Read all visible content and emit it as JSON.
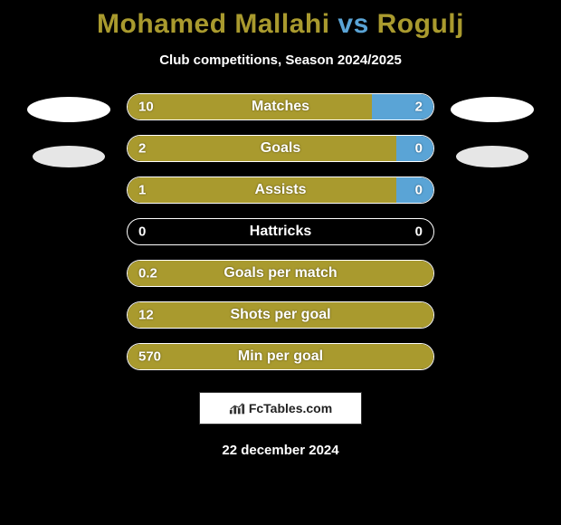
{
  "title": {
    "player1": "Mohamed Mallahi",
    "vs": "vs",
    "player2": "Rogulj",
    "color1": "#a99a2e",
    "color_vs": "#5aa4d6",
    "color2": "#a99a2e"
  },
  "subtitle": "Club competitions, Season 2024/2025",
  "bar_colors": {
    "left": "#a99a2e",
    "right": "#5aa4d6",
    "neutral": "#000000",
    "full_left": "#a99a2e"
  },
  "rows": [
    {
      "label": "Matches",
      "left_value": "10",
      "right_value": "2",
      "left_pct": 80,
      "right_pct": 20,
      "show_right_fill": true
    },
    {
      "label": "Goals",
      "left_value": "2",
      "right_value": "0",
      "left_pct": 88,
      "right_pct": 12,
      "show_right_fill": true
    },
    {
      "label": "Assists",
      "left_value": "1",
      "right_value": "0",
      "left_pct": 88,
      "right_pct": 12,
      "show_right_fill": true
    },
    {
      "label": "Hattricks",
      "left_value": "0",
      "right_value": "0",
      "left_pct": 0,
      "right_pct": 0,
      "show_right_fill": false
    },
    {
      "label": "Goals per match",
      "left_value": "0.2",
      "right_value": "",
      "left_pct": 100,
      "right_pct": 0,
      "show_right_fill": false
    },
    {
      "label": "Shots per goal",
      "left_value": "12",
      "right_value": "",
      "left_pct": 100,
      "right_pct": 0,
      "show_right_fill": false
    },
    {
      "label": "Min per goal",
      "left_value": "570",
      "right_value": "",
      "left_pct": 100,
      "right_pct": 0,
      "show_right_fill": false
    }
  ],
  "footer": {
    "badge_text": "FcTables.com",
    "date": "22 december 2024"
  },
  "logos": {
    "left": [
      "#ffffff",
      "#e6e6e6"
    ],
    "right": [
      "#ffffff",
      "#e6e6e6"
    ]
  }
}
